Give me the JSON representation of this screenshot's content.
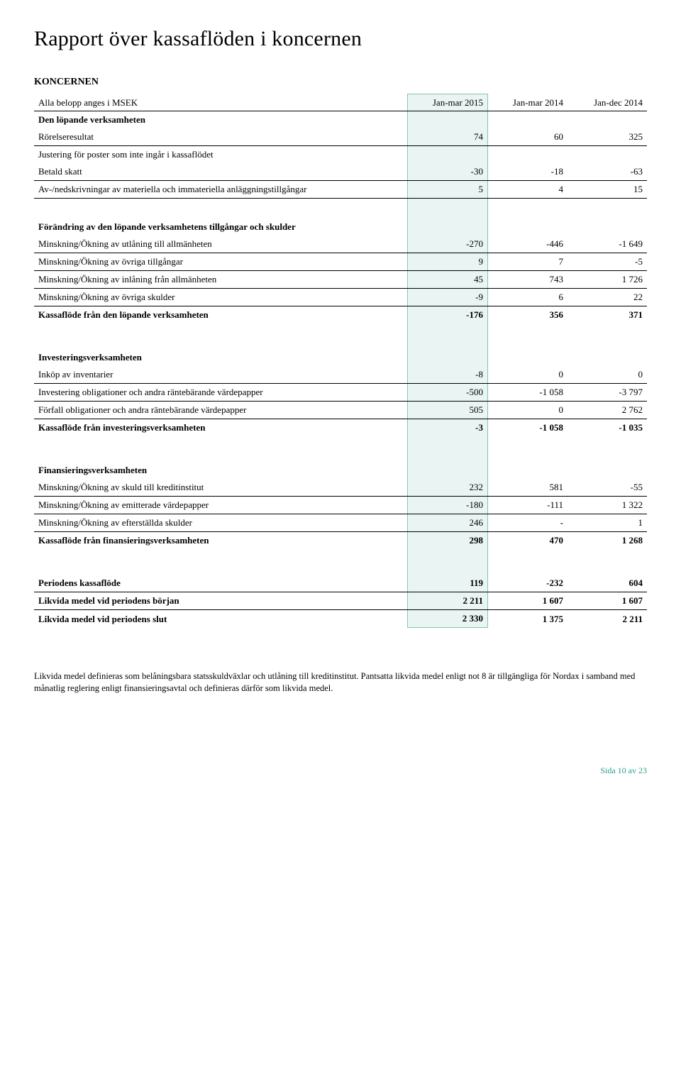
{
  "title": "Rapport över kassaflöden i koncernen",
  "subtitle": "KONCERNEN",
  "columns": {
    "label": "Alla belopp anges i MSEK",
    "c1": "Jan-mar 2015",
    "c2": "Jan-mar 2014",
    "c3": "Jan-dec 2014"
  },
  "sections": [
    {
      "header": "Den löpande verksamheten",
      "rows": [
        {
          "label": "Rörelseresultat",
          "c1": "74",
          "c2": "60",
          "c3": "325"
        },
        {
          "label": "Justering för poster som inte ingår i kassaflödet",
          "c1": "",
          "c2": "",
          "c3": ""
        },
        {
          "label": "Betald skatt",
          "c1": "-30",
          "c2": "-18",
          "c3": "-63"
        },
        {
          "label": "Av-/nedskrivningar av materiella och immateriella anläggningstillgångar",
          "c1": "5",
          "c2": "4",
          "c3": "15",
          "underline": true
        }
      ]
    },
    {
      "header": "Förändring av den löpande verksamhetens tillgångar och skulder",
      "rows": [
        {
          "label": "Minskning/Ökning av utlåning till allmänheten",
          "c1": "-270",
          "c2": "-446",
          "c3": "-1 649"
        },
        {
          "label": "Minskning/Ökning av övriga tillgångar",
          "c1": "9",
          "c2": "7",
          "c3": "-5"
        },
        {
          "label": "Minskning/Ökning av inlåning från allmänheten",
          "c1": "45",
          "c2": "743",
          "c3": "1 726"
        },
        {
          "label": "Minskning/Ökning av övriga skulder",
          "c1": "-9",
          "c2": "6",
          "c3": "22",
          "underline": true
        }
      ],
      "total": {
        "label": "Kassaflöde från den löpande verksamheten",
        "c1": "-176",
        "c2": "356",
        "c3": "371"
      }
    },
    {
      "header": "Investeringsverksamheten",
      "rows": [
        {
          "label": "Inköp av inventarier",
          "c1": "-8",
          "c2": "0",
          "c3": "0"
        },
        {
          "label": "Investering obligationer och andra räntebärande värdepapper",
          "c1": "-500",
          "c2": "-1 058",
          "c3": "-3 797"
        },
        {
          "label": "Förfall obligationer och andra räntebärande värdepapper",
          "c1": "505",
          "c2": "0",
          "c3": "2 762",
          "underline": true
        }
      ],
      "total": {
        "label": "Kassaflöde från investeringsverksamheten",
        "c1": "-3",
        "c2": "-1 058",
        "c3": "-1 035"
      }
    },
    {
      "header": "Finansieringsverksamheten",
      "rows": [
        {
          "label": "Minskning/Ökning av skuld till kreditinstitut",
          "c1": "232",
          "c2": "581",
          "c3": "-55"
        },
        {
          "label": "Minskning/Ökning av emitterade värdepapper",
          "c1": "-180",
          "c2": "-111",
          "c3": "1 322"
        },
        {
          "label": "Minskning/Ökning av efterställda skulder",
          "c1": "246",
          "c2": "-",
          "c3": "1",
          "underline": true
        }
      ],
      "total": {
        "label": "Kassaflöde från finansieringsverksamheten",
        "c1": "298",
        "c2": "470",
        "c3": "1 268"
      }
    }
  ],
  "summary": [
    {
      "label": "Periodens kassaflöde",
      "c1": "119",
      "c2": "-232",
      "c3": "604",
      "bold": true
    },
    {
      "label": "Likvida medel vid periodens början",
      "c1": "2 211",
      "c2": "1 607",
      "c3": "1 607",
      "bold": true,
      "underline": true
    },
    {
      "label": "Likvida medel vid periodens slut",
      "c1": "2 330",
      "c2": "1 375",
      "c3": "2 211",
      "bold": true
    }
  ],
  "footnote": "Likvida medel definieras som belåningsbara statsskuldväxlar och utlåning till kreditinstitut. Pantsatta likvida medel enligt not 8 är tillgängliga för Nordax i samband med månatlig reglering enligt finansieringsavtal och definieras därför som likvida medel.",
  "page": "Sida 10 av 23",
  "style": {
    "highlight_bg": "#eaf5f3",
    "highlight_border": "#7fc4b8",
    "accent_color": "#2a9d8f"
  }
}
